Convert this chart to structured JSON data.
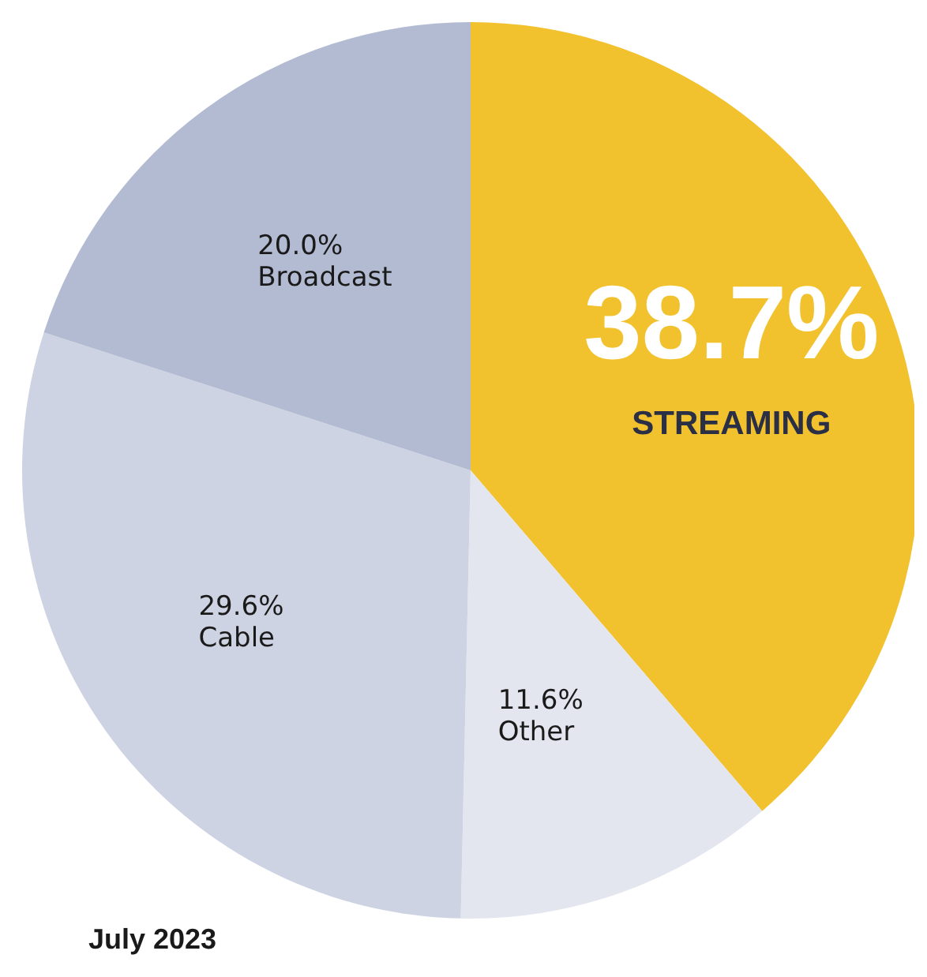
{
  "chart_data": {
    "type": "pie",
    "categories": [
      "STREAMING",
      "Other",
      "Cable",
      "Broadcast"
    ],
    "values": [
      38.7,
      11.6,
      29.6,
      20.0
    ],
    "value_labels": [
      "38.7%",
      "11.6%",
      "29.6%",
      "20.0%"
    ],
    "colors": [
      "#f2c12e",
      "#e3e6ef",
      "#cdd3e2",
      "#b2bbd2"
    ],
    "annotations": [
      "July 2023"
    ]
  }
}
